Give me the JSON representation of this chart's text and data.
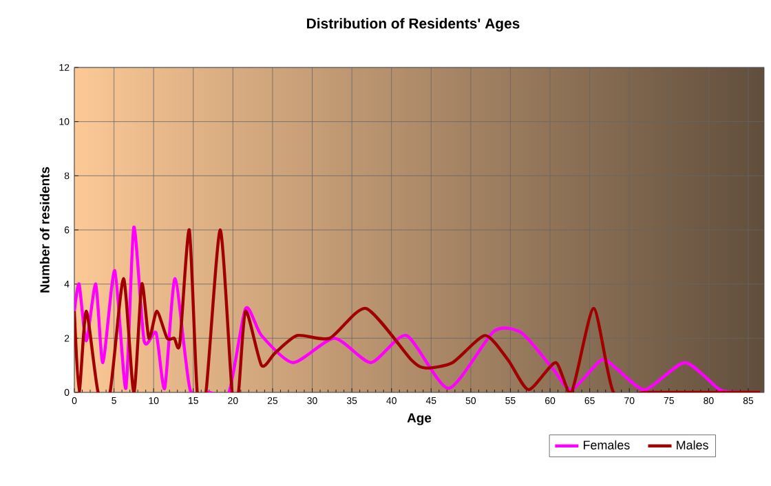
{
  "chart_data": {
    "type": "line",
    "title": "Distribution of Residents' Ages",
    "xlabel": "Age",
    "ylabel": "Number of residents",
    "xlim": [
      0,
      87
    ],
    "ylim": [
      0,
      12
    ],
    "xticks": [
      0,
      5,
      10,
      15,
      20,
      25,
      30,
      35,
      40,
      45,
      50,
      55,
      60,
      65,
      70,
      75,
      80,
      85
    ],
    "yticks": [
      0,
      2,
      4,
      6,
      8,
      10,
      12
    ],
    "grid": true,
    "legend": "bottom right",
    "marker": "none",
    "line_style": "solid",
    "series": [
      {
        "name": "Males",
        "color": "#a00000",
        "x": [
          0,
          0.6,
          1.5,
          3,
          4.5,
          6.2,
          7.5,
          8.5,
          9.4,
          10.4,
          11.7,
          12.6,
          13.3,
          14.5,
          15.5,
          16.6,
          18.4,
          19.9,
          20.7,
          21.6,
          23.6,
          25.3,
          28.1,
          32.2,
          36.8,
          42.5,
          44.3,
          47.7,
          51.8,
          54.7,
          57.3,
          60.7,
          62.7,
          65.5,
          68,
          72,
          77,
          82,
          86.5
        ],
        "values": [
          3,
          0,
          3,
          0,
          0,
          4.2,
          0,
          4,
          2,
          3,
          2,
          2,
          1.8,
          6,
          0,
          0,
          6,
          0,
          0,
          3,
          1,
          1.45,
          2.1,
          2,
          3.1,
          1.2,
          0.9,
          1.1,
          2.1,
          1.2,
          0.1,
          1.1,
          0,
          3.1,
          0,
          0,
          0,
          0,
          0
        ]
      },
      {
        "name": "Females",
        "color": "#ff00ff",
        "x": [
          0,
          0.6,
          1.5,
          2.7,
          3.6,
          5.1,
          6.5,
          7.5,
          8.8,
          10.3,
          11.4,
          12.7,
          14.6,
          17,
          19.5,
          21.6,
          23.6,
          27.6,
          32.8,
          37.4,
          41.9,
          47.2,
          52.9,
          56.4,
          60.4,
          62.7,
          66.5,
          68.5,
          72,
          77,
          81.4,
          84,
          86.5
        ],
        "values": [
          3,
          4,
          1.9,
          4,
          1.1,
          4.5,
          0.15,
          6.1,
          1.9,
          2.2,
          0.15,
          4.2,
          0.1,
          0,
          0,
          3.1,
          2.1,
          1.1,
          2,
          1.1,
          2.1,
          0.15,
          2.25,
          2.2,
          0.85,
          0.1,
          1.2,
          0.85,
          0.1,
          1.1,
          0.1,
          0,
          0
        ]
      }
    ]
  }
}
